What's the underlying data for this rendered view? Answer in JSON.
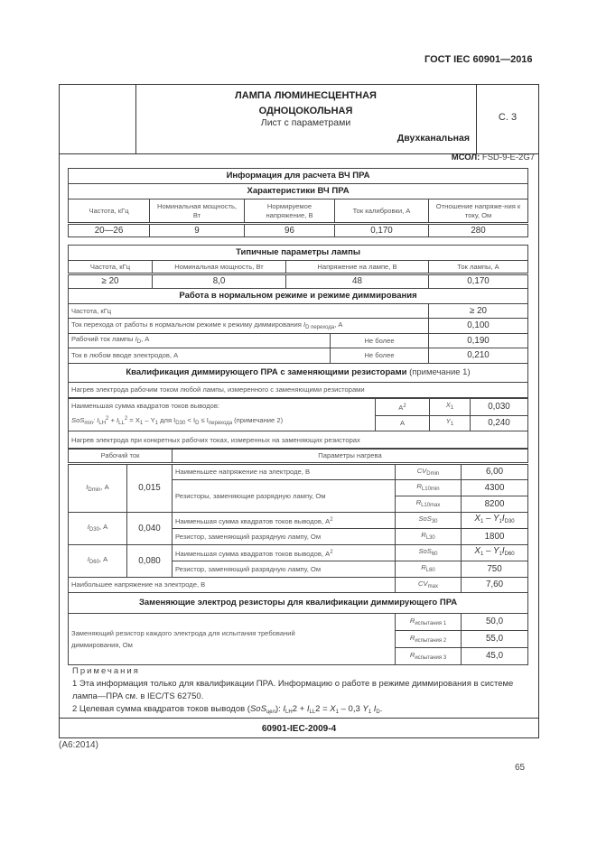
{
  "doc_number": "ГОСТ IEC 60901—2016",
  "header": {
    "title_line1": "ЛАМПА ЛЮМИНЕСЦЕНТНАЯ",
    "title_line2": "ОДНОЦОКОЛЬНАЯ",
    "subtitle": "Лист с параметрами",
    "channel": "Двухканальная",
    "sheet": "С. 3"
  },
  "msol": {
    "label": "МСОЛ:",
    "value": "FSD-9-E-2G7"
  },
  "hf": {
    "title": "Информация для расчета ВЧ ПРА",
    "subtitle": "Характеристики ВЧ ПРА",
    "headers": [
      "Частота, кГц",
      "Номинальная мощность, Вт",
      "Нормируемое напряжение, В",
      "Ток калибровки, А",
      "Отношение напряже-ния к току, Ом"
    ],
    "values": [
      "20—26",
      "9",
      "96",
      "0,170",
      "280"
    ]
  },
  "typical": {
    "title": "Типичные параметры лампы",
    "headers": [
      "Частота, кГц",
      "Номинальная мощность, Вт",
      "Напряжение на лампе, В",
      "Ток лампы, А"
    ],
    "values": [
      "≥ 20",
      "8,0",
      "48",
      "0,170"
    ]
  },
  "normal": {
    "title": "Работа в нормальном режиме и режиме диммирования",
    "freq_label": "Частота, кГц",
    "freq_value": "≥ 20",
    "trans_label": "Ток перехода от работы в нормальном режиме к режиму диммирования ",
    "trans_sym": "I",
    "trans_sub": "D перехода",
    "trans_unit": ", А",
    "trans_value": "0,100",
    "op_label": "Рабочий ток лампы ",
    "op_sym": "I",
    "op_sub": "D",
    "op_unit": ", А",
    "op_limit": "Не более",
    "op_value": "0,190",
    "el_label": "Ток в любом вводе электродов, А",
    "el_limit": "Не более",
    "el_value": "0,210"
  },
  "qual": {
    "title": "Квалификация диммирующего ПРА с заменяющими резисторами",
    "title_note": " (примечание 1)",
    "heat_any": "Нагрев электрода рабочим током любой лампы, измеренного с заменяющими резисторами",
    "sos_line1": "Наименьшая сумма квадратов токов выводов:",
    "sos_f": {
      "a": "SoS",
      "a_sub": "min",
      "b": ": I",
      "b_sub": "LH",
      "c": " + I",
      "c_sub": "LL",
      "d": " = X",
      "d_sub": "1",
      "e": " – Y",
      "e_sub": "1",
      "f": " для I",
      "f_sub": "D30",
      "g": " < I",
      "g_sub": "D",
      "h": " ≤ I",
      "h_sub": "перехода",
      "i": " (примечание 2)"
    },
    "x1": {
      "unit": "А",
      "unit_sup": "2",
      "sym": "X",
      "sub": "1",
      "value": "0,030"
    },
    "y1": {
      "unit": "А",
      "sym": "Y",
      "sub": "1",
      "value": "0,240"
    },
    "heat_specific": "Нагрев электрода при конкретных рабочих токах, измеренных на заменяющих резисторах",
    "col_current": "Рабочий ток",
    "col_params": "Параметры нагрева",
    "groups": [
      {
        "sym": "I",
        "sub": "Dmin",
        "unit": ", А",
        "value": "0,015"
      },
      {
        "sym": "I",
        "sub": "D30",
        "unit": ", А",
        "value": "0,040"
      },
      {
        "sym": "I",
        "sub": "D60",
        "unit": ", А",
        "value": "0,080"
      }
    ],
    "rows": {
      "cvmin": {
        "label": "Наименьшее напряжение на электроде, В",
        "sym": "CV",
        "sub": "Dmin",
        "value": "6,00"
      },
      "resistors_label": "Резисторы, заменяющие разрядную лампу, Ом",
      "rl10min": {
        "sym": "R",
        "sub": "L10min",
        "value": "4300"
      },
      "rl10max": {
        "sym": "R",
        "sub": "L10max",
        "value": "8200"
      },
      "sos30": {
        "label": "Наименьшая сумма квадратов токов выводов, А",
        "sym": "SoS",
        "sub": "30",
        "value": "X",
        "v1": "1",
        "v2": " – Y",
        "v3": "1",
        "v4": "I",
        "v5": "D30"
      },
      "rl30": {
        "label": "Резистор, заменяющий разрядную лампу, Ом",
        "sym": "R",
        "sub": "L30",
        "value": "1800"
      },
      "sos60": {
        "label": "Наименьшая сумма квадратов токов выводов, А",
        "sym": "SoS",
        "sub": "60",
        "value": "X",
        "v1": "1",
        "v2": " – Y",
        "v3": "1",
        "v4": "I",
        "v5": "D60"
      },
      "rl60": {
        "label": "Резистор, заменяющий разрядную лампу, Ом",
        "sym": "R",
        "sub": "L60",
        "value": "750"
      },
      "cvmax": {
        "label": "Наибольшее напряжение на электроде, В",
        "sym": "CV",
        "sub": "max",
        "value": "7,60"
      }
    }
  },
  "replace": {
    "title": "Заменяющие электрод резисторы для квалификации диммирующего ПРА",
    "label": "Заменяющий резистор каждого электрода для испытания требований диммирования, Ом",
    "items": [
      {
        "sym": "R",
        "sub": "испытания 1",
        "value": "50,0"
      },
      {
        "sym": "R",
        "sub": "испытания 2",
        "value": "55,0"
      },
      {
        "sym": "R",
        "sub": "испытания 3",
        "value": "45,0"
      }
    ]
  },
  "notes": {
    "title": "Примечания",
    "n1": "1 Эта информация только для квалификации ПРА. Информацию о работе в режиме диммирования в системе лампа—ПРА см. в IEC/TS 62750.",
    "n2": {
      "a": "2 Целевая сумма квадратов токов выводов (",
      "b": "SoS",
      "b_sub": "цел",
      "c": "): ",
      "d": "I",
      "d_sub": "LH",
      "e": "2 + ",
      "f": "I",
      "f_sub": "LL",
      "g": "2 = ",
      "h": "X",
      "h_sub": "1",
      "i": " – 0,3 ",
      "j": "Y",
      "j_sub": "1",
      "k": " ",
      "l": "I",
      "l_sub": "D",
      "m": "."
    }
  },
  "footer": "60901-IEC-2009-4",
  "amendment": "(A6:2014)",
  "page_number": "65"
}
